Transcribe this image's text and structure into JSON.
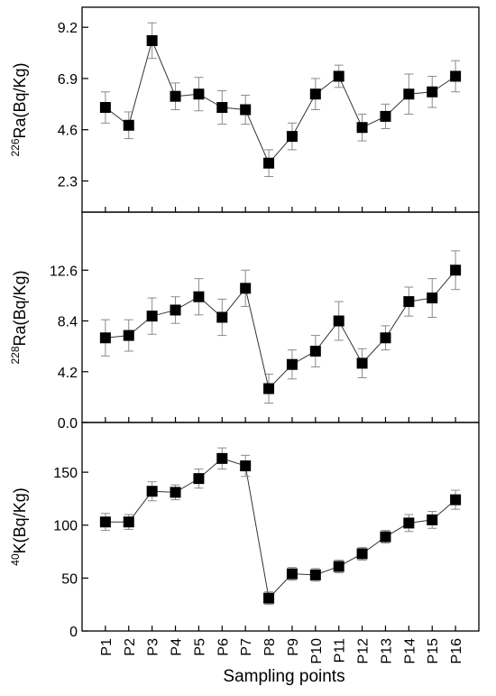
{
  "chart_data": [
    {
      "type": "line",
      "title": "",
      "ylabel_sup": "226",
      "ylabel": "Ra(Bq/Kg)",
      "xlabel": "",
      "ylim": [
        0.9,
        10.1
      ],
      "yticks": [
        "2.3",
        "4.6",
        "6.9",
        "9.2"
      ],
      "grid": false,
      "categories": [
        "P1",
        "P2",
        "P3",
        "P4",
        "P5",
        "P6",
        "P7",
        "P8",
        "P9",
        "P10",
        "P11",
        "P12",
        "P13",
        "P14",
        "P15",
        "P16"
      ],
      "series": [
        {
          "values": [
            5.6,
            4.8,
            8.6,
            6.1,
            6.2,
            5.6,
            5.5,
            3.1,
            4.3,
            6.2,
            7.0,
            4.7,
            5.2,
            6.2,
            6.3,
            7.0
          ],
          "errors": [
            0.7,
            0.6,
            0.8,
            0.6,
            0.75,
            0.75,
            0.65,
            0.6,
            0.6,
            0.7,
            0.5,
            0.6,
            0.55,
            0.9,
            0.7,
            0.7
          ]
        }
      ]
    },
    {
      "type": "line",
      "title": "",
      "ylabel_sup": "228",
      "ylabel": "Ra(Bq/Kg)",
      "xlabel": "",
      "ylim": [
        0.0,
        17.4
      ],
      "yticks": [
        "0.0",
        "4.2",
        "8.4",
        "12.6"
      ],
      "grid": false,
      "categories": [
        "P1",
        "P2",
        "P3",
        "P4",
        "P5",
        "P6",
        "P7",
        "P8",
        "P9",
        "P10",
        "P11",
        "P12",
        "P13",
        "P14",
        "P15",
        "P16"
      ],
      "series": [
        {
          "values": [
            7.0,
            7.2,
            8.8,
            9.3,
            10.4,
            8.7,
            11.1,
            2.8,
            4.8,
            5.9,
            8.4,
            4.9,
            7.0,
            10.0,
            10.3,
            12.6
          ],
          "errors": [
            1.5,
            1.3,
            1.5,
            1.1,
            1.5,
            1.5,
            1.5,
            1.2,
            1.2,
            1.3,
            1.6,
            1.2,
            1.0,
            1.2,
            1.6,
            1.6
          ]
        }
      ]
    },
    {
      "type": "line",
      "title": "",
      "ylabel_sup": "40",
      "ylabel": "K(Bq/Kg)",
      "xlabel": "Sampling points",
      "ylim": [
        0,
        197
      ],
      "yticks": [
        "0",
        "50",
        "100",
        "150"
      ],
      "grid": false,
      "categories": [
        "P1",
        "P2",
        "P3",
        "P4",
        "P5",
        "P6",
        "P7",
        "P8",
        "P9",
        "P10",
        "P11",
        "P12",
        "P13",
        "P14",
        "P15",
        "P16"
      ],
      "series": [
        {
          "values": [
            103,
            103,
            132,
            131,
            144,
            163,
            156,
            31,
            54,
            53,
            61,
            73,
            89,
            102,
            105,
            124
          ],
          "errors": [
            8,
            7,
            9,
            7,
            9,
            10,
            10,
            6,
            6,
            6,
            6,
            6,
            6,
            8,
            8,
            9
          ]
        }
      ]
    }
  ]
}
